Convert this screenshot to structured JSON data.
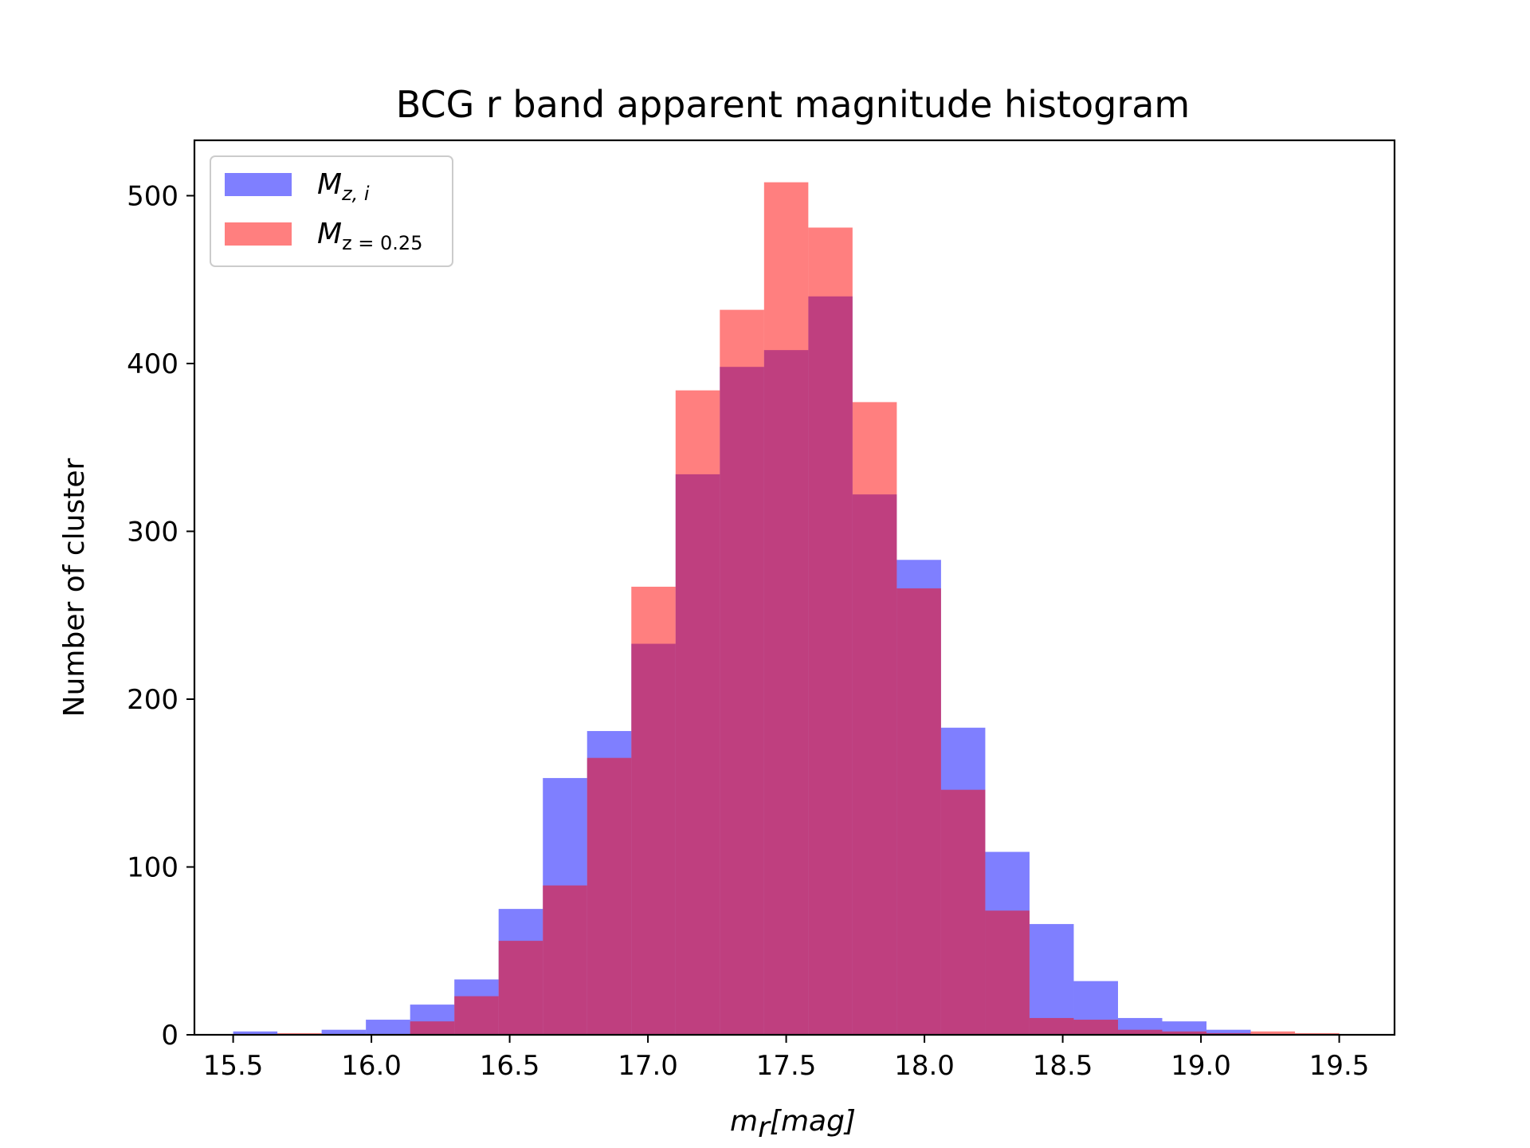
{
  "chart_data": {
    "type": "bar",
    "title": "BCG r band apparent magnitude histogram",
    "xlabel_main": "m",
    "xlabel_sub": "r",
    "xlabel_rest": "[mag]",
    "ylabel": "Number of cluster",
    "xlim": [
      15.36,
      19.7
    ],
    "ylim": [
      0,
      533
    ],
    "grid": false,
    "legend_position": "top-left",
    "x_ticks": [
      {
        "v": 15.5,
        "label": "15.5"
      },
      {
        "v": 16.0,
        "label": "16.0"
      },
      {
        "v": 16.5,
        "label": "16.5"
      },
      {
        "v": 17.0,
        "label": "17.0"
      },
      {
        "v": 17.5,
        "label": "17.5"
      },
      {
        "v": 18.0,
        "label": "18.0"
      },
      {
        "v": 18.5,
        "label": "18.5"
      },
      {
        "v": 19.0,
        "label": "19.0"
      },
      {
        "v": 19.5,
        "label": "19.5"
      }
    ],
    "y_ticks": [
      {
        "v": 0,
        "label": "0"
      },
      {
        "v": 100,
        "label": "100"
      },
      {
        "v": 200,
        "label": "200"
      },
      {
        "v": 300,
        "label": "300"
      },
      {
        "v": 400,
        "label": "400"
      },
      {
        "v": 500,
        "label": "500"
      }
    ],
    "bin_edges": [
      15.5,
      15.66,
      15.82,
      15.98,
      16.14,
      16.3,
      16.46,
      16.62,
      16.78,
      16.94,
      17.1,
      17.26,
      17.42,
      17.58,
      17.74,
      17.9,
      18.06,
      18.22,
      18.38,
      18.54,
      18.7,
      18.86,
      19.02,
      19.18,
      19.34,
      19.5
    ],
    "series": [
      {
        "name_main": "M",
        "name_sub": "z, i",
        "color": "#0000ff",
        "opacity": 0.5,
        "values": [
          2,
          0,
          3,
          9,
          18,
          33,
          75,
          153,
          181,
          233,
          334,
          398,
          408,
          440,
          322,
          283,
          183,
          109,
          66,
          32,
          10,
          8,
          3,
          0,
          0
        ]
      },
      {
        "name_main": "M",
        "name_sub": "z = 0.25",
        "color": "#ff0000",
        "opacity": 0.5,
        "values": [
          0,
          1,
          0,
          0,
          8,
          23,
          56,
          89,
          165,
          267,
          384,
          432,
          508,
          481,
          377,
          266,
          146,
          74,
          10,
          9,
          3,
          2,
          1,
          2,
          1
        ]
      }
    ]
  }
}
